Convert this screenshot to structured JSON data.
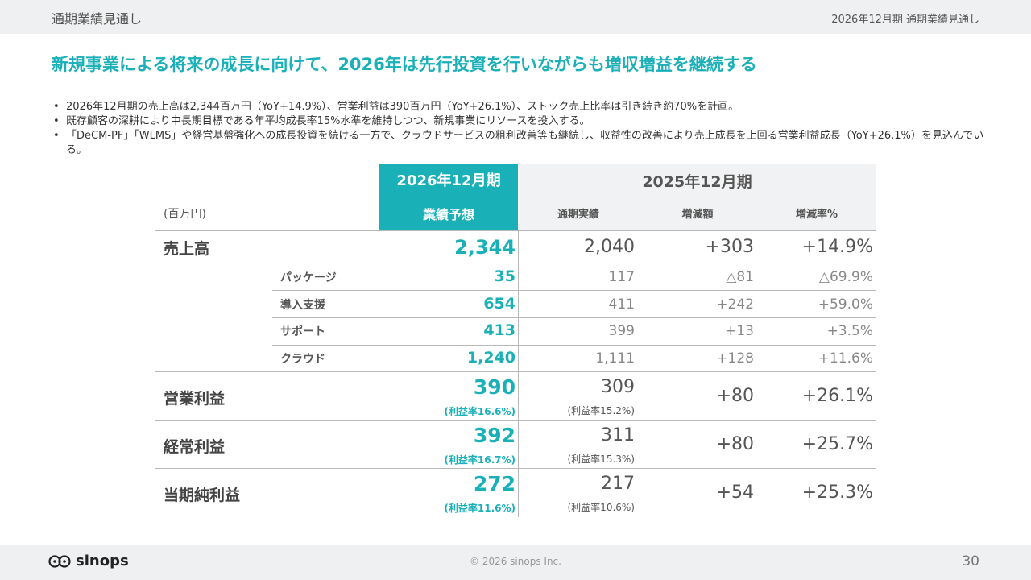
{
  "header": {
    "section_title": "通期業績見通し",
    "right_title": "2026年12月期 通期業績見通し"
  },
  "headline": "新規事業による将来の成長に向けて、2026年は先行投資を行いながらも増収増益を継続する",
  "bullets": [
    "2026年12月期の売上高は2,344百万円（YoY+14.9%）、営業利益は390百万円（YoY+26.1%）、ストック売上比率は引き続き約70%を計画。",
    "既存顧客の深耕により中長期目標である年平均成長率15%水準を維持しつつ、新規事業にリソースを投入する。",
    "「DeCM-PF」「WLMS」や経営基盤強化への成長投資を続ける一方で、クラウドサービスの粗利改善等も継続し、収益性の改善により売上成長を上回る営業利益成長（YoY+26.1%）を見込んでいる。"
  ],
  "table": {
    "unit_label": "(百万円)",
    "forecast_period": "2026年12月期",
    "forecast_col": "業績予想",
    "prior_period": "2025年12月期",
    "prior_cols": [
      "通期実績",
      "増減額",
      "増減率%"
    ],
    "rows": {
      "sales": {
        "label": "売上高",
        "forecast": "2,344",
        "actual": "2,040",
        "diff": "+303",
        "rate": "+14.9%"
      },
      "package": {
        "label": "パッケージ",
        "forecast": "35",
        "actual": "117",
        "diff": "△81",
        "rate": "△69.9%"
      },
      "implementation": {
        "label": "導入支援",
        "forecast": "654",
        "actual": "411",
        "diff": "+242",
        "rate": "+59.0%"
      },
      "support": {
        "label": "サポート",
        "forecast": "413",
        "actual": "399",
        "diff": "+13",
        "rate": "+3.5%"
      },
      "cloud": {
        "label": "クラウド",
        "forecast": "1,240",
        "actual": "1,111",
        "diff": "+128",
        "rate": "+11.6%"
      },
      "operating": {
        "label": "営業利益",
        "forecast": "390",
        "forecast_margin": "(利益率16.6%)",
        "actual": "309",
        "actual_margin": "(利益率15.2%)",
        "diff": "+80",
        "rate": "+26.1%"
      },
      "ordinary": {
        "label": "経常利益",
        "forecast": "392",
        "forecast_margin": "(利益率16.7%)",
        "actual": "311",
        "actual_margin": "(利益率15.3%)",
        "diff": "+80",
        "rate": "+25.7%"
      },
      "net": {
        "label": "当期純利益",
        "forecast": "272",
        "forecast_margin": "(利益率11.6%)",
        "actual": "217",
        "actual_margin": "(利益率10.6%)",
        "diff": "+54",
        "rate": "+25.3%"
      }
    }
  },
  "footer": {
    "logo_text": "sinops",
    "copyright": "© 2026 sinops Inc.",
    "page_number": "30"
  },
  "colors": {
    "accent": "#1ab0b8",
    "header_bg": "#eef0f1"
  }
}
